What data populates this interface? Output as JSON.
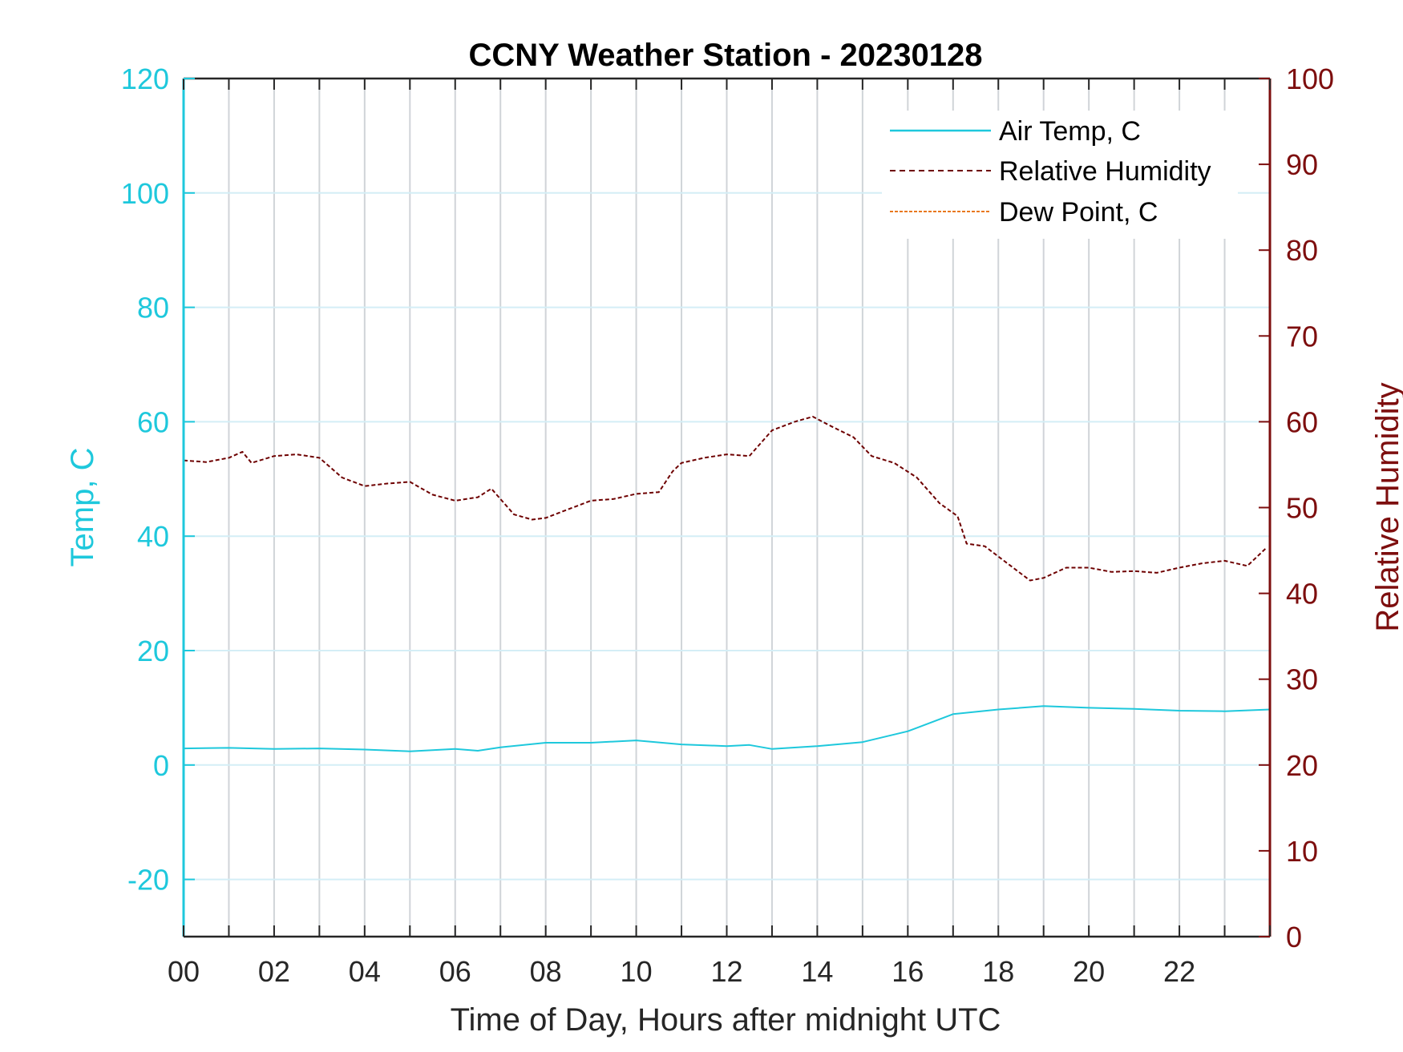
{
  "colors": {
    "left_axis": "#1ec8dc",
    "right_axis": "#7d0e0e",
    "air_temp": "#1ec8dc",
    "relative_humidity": "#6e0000",
    "dew_point": "#e8781e",
    "x_axis": "#262626",
    "grid_vertical": "#d0d4d8",
    "grid_horizontal": "#d4eef6"
  },
  "chart_data": {
    "type": "line",
    "title": "CCNY Weather Station - 20230128",
    "xlabel": "Time of Day, Hours after midnight UTC",
    "ylabel_left": "Temp, C",
    "ylabel_right": "Relative Humidity",
    "xlim": [
      0,
      24
    ],
    "ylim_left": [
      -30,
      120
    ],
    "ylim_right": [
      0,
      100
    ],
    "x_tick_values": [
      0,
      2,
      4,
      6,
      8,
      10,
      12,
      14,
      16,
      18,
      20,
      22
    ],
    "x_tick_labels": [
      "00",
      "02",
      "04",
      "06",
      "08",
      "10",
      "12",
      "14",
      "16",
      "18",
      "20",
      "22"
    ],
    "y_left_tick_values": [
      -20,
      0,
      20,
      40,
      60,
      80,
      100,
      120
    ],
    "y_left_tick_labels": [
      "-20",
      "0",
      "20",
      "40",
      "60",
      "80",
      "100",
      "120"
    ],
    "y_right_tick_values": [
      0,
      10,
      20,
      30,
      40,
      50,
      60,
      70,
      80,
      90,
      100
    ],
    "y_right_tick_labels": [
      "0",
      "10",
      "20",
      "30",
      "40",
      "50",
      "60",
      "70",
      "80",
      "90",
      "100"
    ],
    "grid": true,
    "legend_position": "top-right",
    "series": [
      {
        "name": "Air Temp, C",
        "axis": "left",
        "style": "solid",
        "x": [
          0,
          1,
          2,
          3,
          4,
          5,
          6,
          6.5,
          7,
          8,
          9,
          10,
          11,
          12,
          12.5,
          13,
          14,
          15,
          16,
          17,
          18,
          19,
          20,
          21,
          22,
          23,
          24
        ],
        "y": [
          2.9,
          3.0,
          2.8,
          2.9,
          2.7,
          2.4,
          2.8,
          2.5,
          3.1,
          3.9,
          3.9,
          4.3,
          3.6,
          3.3,
          3.5,
          2.8,
          3.3,
          4.0,
          5.9,
          8.9,
          9.7,
          10.3,
          10.0,
          9.8,
          9.5,
          9.4,
          9.7
        ]
      },
      {
        "name": "Relative Humidity",
        "axis": "right",
        "style": "dashed",
        "x": [
          0,
          0.5,
          1,
          1.3,
          1.5,
          2,
          2.5,
          3,
          3.5,
          4,
          4.5,
          5,
          5.5,
          6,
          6.5,
          6.8,
          7,
          7.3,
          7.7,
          8,
          8.5,
          9,
          9.5,
          10,
          10.5,
          10.8,
          11,
          11.5,
          12,
          12.5,
          13,
          13.5,
          13.9,
          14.3,
          14.8,
          15.2,
          15.7,
          16.2,
          16.7,
          17.1,
          17.3,
          17.7,
          18.2,
          18.7,
          19,
          19.5,
          20,
          20.5,
          21,
          21.5,
          22,
          22.5,
          23,
          23.5,
          23.9
        ],
        "y": [
          55.5,
          55.3,
          55.8,
          56.5,
          55.2,
          56.0,
          56.2,
          55.8,
          53.5,
          52.5,
          52.8,
          53.0,
          51.5,
          50.8,
          51.2,
          52.2,
          51.0,
          49.2,
          48.6,
          48.8,
          49.8,
          50.8,
          51.0,
          51.6,
          51.8,
          54.2,
          55.2,
          55.8,
          56.2,
          56.0,
          59.0,
          60.0,
          60.6,
          59.5,
          58.2,
          56.0,
          55.2,
          53.5,
          50.5,
          49.0,
          45.8,
          45.5,
          43.5,
          41.5,
          41.8,
          43.0,
          43.0,
          42.5,
          42.6,
          42.4,
          43.0,
          43.5,
          43.8,
          43.2,
          45.2
        ]
      },
      {
        "name": "Dew Point, C",
        "axis": "left",
        "style": "dashed",
        "x": [],
        "y": []
      }
    ]
  }
}
